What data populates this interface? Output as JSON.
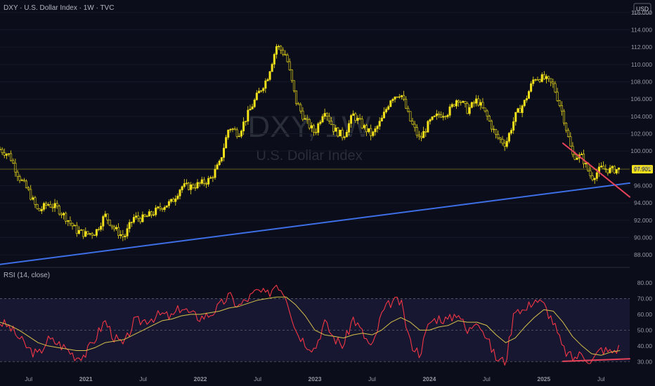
{
  "header": {
    "symbol_title": "DXY · U.S. Dollar Index · 1W · TVC",
    "currency": "USD",
    "watermark_symbol": "DXY, 1W",
    "watermark_name": "U.S. Dollar Index"
  },
  "rsi_panel": {
    "label": "RSI (14, close)"
  },
  "chart_data": [
    {
      "type": "candlestick",
      "title": "DXY · U.S. Dollar Index · 1W · TVC",
      "y_ticks": [
        "116.000",
        "114.000",
        "112.000",
        "110.000",
        "108.000",
        "106.000",
        "104.000",
        "102.000",
        "100.000",
        "98.000",
        "96.000",
        "94.000",
        "92.000",
        "90.000",
        "88.000"
      ],
      "ylim": [
        86.8,
        116.8
      ],
      "x_tick_labels": [
        "Jul",
        "2021",
        "Jul",
        "2022",
        "Jul",
        "2023",
        "Jul",
        "2024",
        "Jul",
        "2025",
        "Jul"
      ],
      "xlim": [
        "2020-04",
        "2025-10"
      ],
      "last_price": "97.901",
      "series": [
        {
          "name": "DXY",
          "color": "#f5e21a",
          "points": [
            [
              "2020-04",
              100.2
            ],
            [
              "2020-05",
              99.5
            ],
            [
              "2020-06",
              97.0
            ],
            [
              "2020-07",
              95.3
            ],
            [
              "2020-08",
              93.0
            ],
            [
              "2020-09",
              93.9
            ],
            [
              "2020-10",
              93.4
            ],
            [
              "2020-11",
              92.2
            ],
            [
              "2020-12",
              90.8
            ],
            [
              "2021-01",
              90.4
            ],
            [
              "2021-02",
              90.6
            ],
            [
              "2021-03",
              92.6
            ],
            [
              "2021-04",
              91.0
            ],
            [
              "2021-05",
              90.0
            ],
            [
              "2021-06",
              92.3
            ],
            [
              "2021-07",
              92.2
            ],
            [
              "2021-08",
              92.8
            ],
            [
              "2021-09",
              93.6
            ],
            [
              "2021-10",
              94.1
            ],
            [
              "2021-11",
              95.9
            ],
            [
              "2021-12",
              95.9
            ],
            [
              "2022-01",
              96.2
            ],
            [
              "2022-02",
              96.7
            ],
            [
              "2022-03",
              98.5
            ],
            [
              "2022-04",
              102.8
            ],
            [
              "2022-05",
              102.0
            ],
            [
              "2022-06",
              104.3
            ],
            [
              "2022-07",
              106.5
            ],
            [
              "2022-08",
              108.4
            ],
            [
              "2022-09",
              112.2
            ],
            [
              "2022-10",
              111.0
            ],
            [
              "2022-11",
              105.8
            ],
            [
              "2022-12",
              103.5
            ],
            [
              "2023-01",
              102.1
            ],
            [
              "2023-02",
              104.9
            ],
            [
              "2023-03",
              102.5
            ],
            [
              "2023-04",
              101.7
            ],
            [
              "2023-05",
              104.2
            ],
            [
              "2023-06",
              102.9
            ],
            [
              "2023-07",
              101.8
            ],
            [
              "2023-08",
              103.6
            ],
            [
              "2023-09",
              106.2
            ],
            [
              "2023-10",
              106.7
            ],
            [
              "2023-11",
              103.5
            ],
            [
              "2023-12",
              101.3
            ],
            [
              "2024-01",
              103.3
            ],
            [
              "2024-02",
              104.2
            ],
            [
              "2024-03",
              104.5
            ],
            [
              "2024-04",
              106.2
            ],
            [
              "2024-05",
              104.7
            ],
            [
              "2024-06",
              105.9
            ],
            [
              "2024-07",
              104.1
            ],
            [
              "2024-08",
              101.7
            ],
            [
              "2024-09",
              100.8
            ],
            [
              "2024-10",
              104.0
            ],
            [
              "2024-11",
              105.7
            ],
            [
              "2024-12",
              108.5
            ],
            [
              "2025-01",
              108.4
            ],
            [
              "2025-02",
              107.6
            ],
            [
              "2025-03",
              104.2
            ],
            [
              "2025-04",
              99.5
            ],
            [
              "2025-05",
              99.3
            ],
            [
              "2025-06",
              96.9
            ],
            [
              "2025-07",
              98.0
            ],
            [
              "2025-08",
              97.8
            ],
            [
              "2025-09",
              97.9
            ]
          ]
        }
      ],
      "annotations": [
        {
          "name": "long-term support trendline",
          "color": "#3d6ee6",
          "from": [
            "2020-04",
            86.9
          ],
          "to": [
            "2025-10",
            96.3
          ]
        },
        {
          "name": "price lower-highs trendline",
          "color": "#e8435a",
          "from": [
            "2025-03",
            100.9
          ],
          "to": [
            "2025-10",
            94.7
          ]
        },
        {
          "name": "last price line",
          "color": "#f5e21a",
          "value": 97.9
        }
      ]
    },
    {
      "type": "line",
      "title": "RSI (14, close)",
      "y_ticks": [
        "80.00",
        "70.00",
        "60.00",
        "50.00",
        "40.00",
        "30.00"
      ],
      "ylim": [
        27,
        84
      ],
      "band": [
        30,
        70
      ],
      "series": [
        {
          "name": "RSI",
          "color": "#f23645",
          "points": [
            [
              "2020-04",
              55
            ],
            [
              "2020-05",
              52
            ],
            [
              "2020-06",
              45
            ],
            [
              "2020-07",
              38
            ],
            [
              "2020-08",
              34
            ],
            [
              "2020-09",
              44
            ],
            [
              "2020-10",
              42
            ],
            [
              "2020-11",
              38
            ],
            [
              "2020-12",
              33
            ],
            [
              "2021-01",
              35
            ],
            [
              "2021-02",
              45
            ],
            [
              "2021-03",
              56
            ],
            [
              "2021-04",
              45
            ],
            [
              "2021-05",
              40
            ],
            [
              "2021-06",
              55
            ],
            [
              "2021-07",
              56
            ],
            [
              "2021-08",
              58
            ],
            [
              "2021-09",
              60
            ],
            [
              "2021-10",
              58
            ],
            [
              "2021-11",
              65
            ],
            [
              "2021-12",
              60
            ],
            [
              "2022-01",
              58
            ],
            [
              "2022-02",
              60
            ],
            [
              "2022-03",
              65
            ],
            [
              "2022-04",
              72
            ],
            [
              "2022-05",
              65
            ],
            [
              "2022-06",
              70
            ],
            [
              "2022-07",
              75
            ],
            [
              "2022-08",
              72
            ],
            [
              "2022-09",
              80
            ],
            [
              "2022-10",
              72
            ],
            [
              "2022-11",
              50
            ],
            [
              "2022-12",
              42
            ],
            [
              "2023-01",
              38
            ],
            [
              "2023-02",
              55
            ],
            [
              "2023-03",
              45
            ],
            [
              "2023-04",
              40
            ],
            [
              "2023-05",
              58
            ],
            [
              "2023-06",
              48
            ],
            [
              "2023-07",
              38
            ],
            [
              "2023-08",
              60
            ],
            [
              "2023-09",
              68
            ],
            [
              "2023-10",
              68
            ],
            [
              "2023-11",
              42
            ],
            [
              "2023-12",
              35
            ],
            [
              "2024-01",
              55
            ],
            [
              "2024-02",
              58
            ],
            [
              "2024-03",
              56
            ],
            [
              "2024-04",
              62
            ],
            [
              "2024-05",
              48
            ],
            [
              "2024-06",
              58
            ],
            [
              "2024-07",
              45
            ],
            [
              "2024-08",
              32
            ],
            [
              "2024-09",
              30
            ],
            [
              "2024-10",
              65
            ],
            [
              "2024-11",
              62
            ],
            [
              "2024-12",
              70
            ],
            [
              "2025-01",
              66
            ],
            [
              "2025-02",
              55
            ],
            [
              "2025-03",
              38
            ],
            [
              "2025-04",
              32
            ],
            [
              "2025-05",
              35
            ],
            [
              "2025-06",
              30
            ],
            [
              "2025-07",
              38
            ],
            [
              "2025-08",
              36
            ],
            [
              "2025-09",
              39
            ]
          ]
        },
        {
          "name": "RSI-based MA",
          "color": "#d6c24a",
          "points": [
            [
              "2020-04",
              55
            ],
            [
              "2020-05",
              53
            ],
            [
              "2020-06",
              50
            ],
            [
              "2020-07",
              46
            ],
            [
              "2020-08",
              42
            ],
            [
              "2020-09",
              40
            ],
            [
              "2020-10",
              39
            ],
            [
              "2020-11",
              38
            ],
            [
              "2020-12",
              37
            ],
            [
              "2021-01",
              37
            ],
            [
              "2021-02",
              39
            ],
            [
              "2021-03",
              42
            ],
            [
              "2021-04",
              43
            ],
            [
              "2021-05",
              44
            ],
            [
              "2021-06",
              47
            ],
            [
              "2021-07",
              50
            ],
            [
              "2021-08",
              53
            ],
            [
              "2021-09",
              56
            ],
            [
              "2021-10",
              57
            ],
            [
              "2021-11",
              59
            ],
            [
              "2021-12",
              60
            ],
            [
              "2022-01",
              60
            ],
            [
              "2022-02",
              61
            ],
            [
              "2022-03",
              62
            ],
            [
              "2022-04",
              64
            ],
            [
              "2022-05",
              65
            ],
            [
              "2022-06",
              67
            ],
            [
              "2022-07",
              69
            ],
            [
              "2022-08",
              70
            ],
            [
              "2022-09",
              71
            ],
            [
              "2022-10",
              71
            ],
            [
              "2022-11",
              66
            ],
            [
              "2022-12",
              59
            ],
            [
              "2023-01",
              50
            ],
            [
              "2023-02",
              47
            ],
            [
              "2023-03",
              46
            ],
            [
              "2023-04",
              45
            ],
            [
              "2023-05",
              47
            ],
            [
              "2023-06",
              48
            ],
            [
              "2023-07",
              47
            ],
            [
              "2023-08",
              50
            ],
            [
              "2023-09",
              55
            ],
            [
              "2023-10",
              58
            ],
            [
              "2023-11",
              55
            ],
            [
              "2023-12",
              50
            ],
            [
              "2024-01",
              50
            ],
            [
              "2024-02",
              52
            ],
            [
              "2024-03",
              53
            ],
            [
              "2024-04",
              56
            ],
            [
              "2024-05",
              55
            ],
            [
              "2024-06",
              55
            ],
            [
              "2024-07",
              53
            ],
            [
              "2024-08",
              47
            ],
            [
              "2024-09",
              42
            ],
            [
              "2024-10",
              45
            ],
            [
              "2024-11",
              52
            ],
            [
              "2024-12",
              58
            ],
            [
              "2025-01",
              63
            ],
            [
              "2025-02",
              62
            ],
            [
              "2025-03",
              55
            ],
            [
              "2025-04",
              46
            ],
            [
              "2025-05",
              40
            ],
            [
              "2025-06",
              35
            ],
            [
              "2025-07",
              34
            ],
            [
              "2025-08",
              36
            ],
            [
              "2025-09",
              37
            ]
          ]
        }
      ],
      "annotations": [
        {
          "name": "RSI divergence trendline",
          "color": "#e8435a",
          "from": [
            "2025-03",
            30.2
          ],
          "to": [
            "2025-10",
            31.8
          ]
        }
      ]
    }
  ]
}
